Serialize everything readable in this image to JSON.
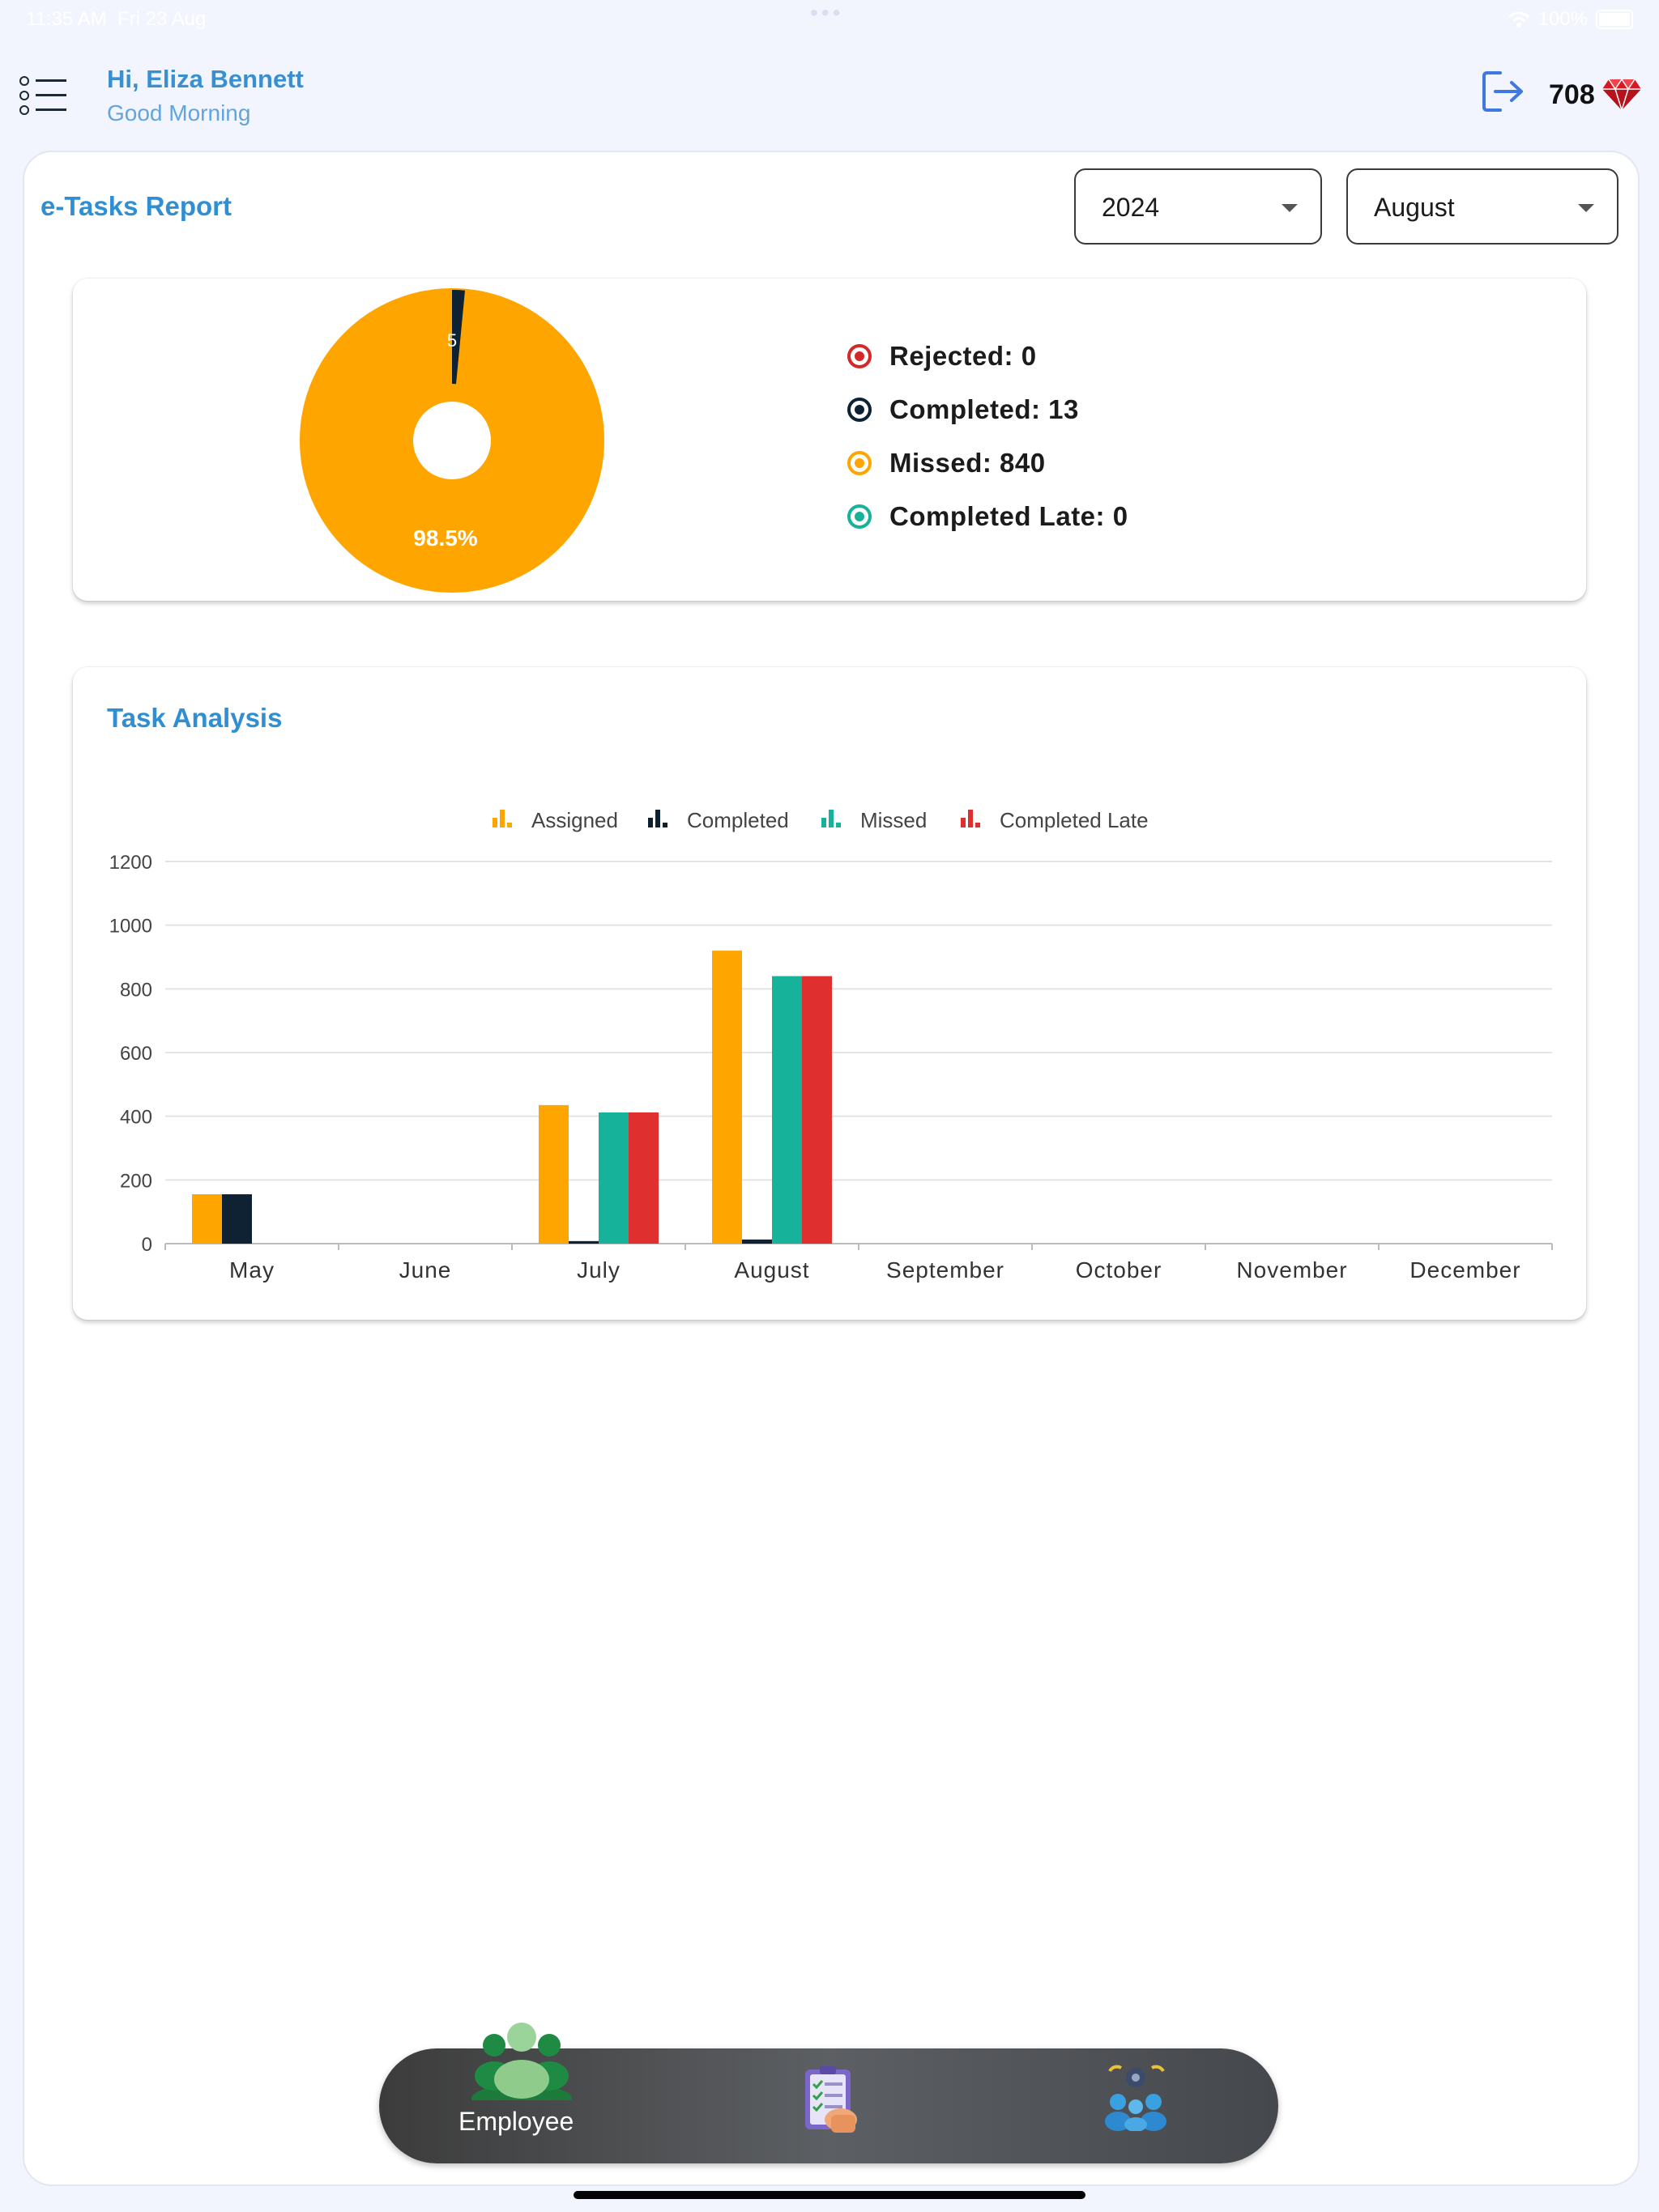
{
  "status_bar": {
    "time": "11:35 AM",
    "date": "Fri 23 Aug",
    "battery": "100%",
    "icons": [
      "wifi-icon",
      "battery-icon"
    ]
  },
  "header": {
    "menu_icon": "list-menu-icon",
    "greeting_name": "Hi, Eliza Bennett",
    "greeting_sub": "Good Morning",
    "logout_icon": "logout-icon",
    "points": "708",
    "points_icon": "ruby-gem-icon"
  },
  "report": {
    "title": "e-Tasks Report",
    "year_select": {
      "value": "2024"
    },
    "month_select": {
      "value": "August"
    }
  },
  "pie": {
    "center_label": "98.5%",
    "small_label": "5",
    "legend": [
      {
        "label": "Rejected: 0",
        "color": "#d62828"
      },
      {
        "label": "Completed: 13",
        "color": "#0e2233"
      },
      {
        "label": "Missed: 840",
        "color": "#ffa500"
      },
      {
        "label": "Completed Late: 0",
        "color": "#16b39a"
      }
    ]
  },
  "analysis": {
    "title": "Task Analysis"
  },
  "chart_data": {
    "type": "bar",
    "categories": [
      "May",
      "June",
      "July",
      "August",
      "September",
      "October",
      "November",
      "December"
    ],
    "series": [
      {
        "name": "Assigned",
        "color": "#ffa500",
        "values": [
          155,
          0,
          435,
          920,
          0,
          0,
          0,
          0
        ]
      },
      {
        "name": "Completed",
        "color": "#0e2233",
        "values": [
          155,
          0,
          8,
          13,
          0,
          0,
          0,
          0
        ]
      },
      {
        "name": "Missed",
        "color": "#16b39a",
        "values": [
          0,
          0,
          412,
          840,
          0,
          0,
          0,
          0
        ]
      },
      {
        "name": "Completed Late",
        "color": "#df2f2f",
        "values": [
          0,
          0,
          412,
          840,
          0,
          0,
          0,
          0
        ]
      }
    ],
    "yticks": [
      0,
      200,
      400,
      600,
      800,
      1000,
      1200
    ],
    "ylim": [
      0,
      1200
    ],
    "legend": "top-center",
    "grid": true
  },
  "nav": {
    "employee_label": "Employee",
    "employee_icon": "employee-group-icon",
    "tasks_icon": "task-checklist-icon",
    "team_icon": "team-settings-icon"
  }
}
